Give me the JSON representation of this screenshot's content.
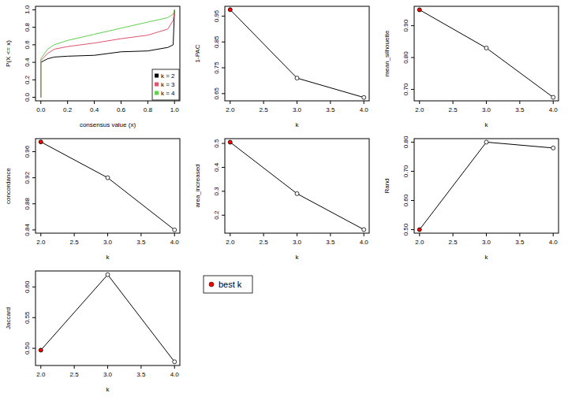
{
  "chart_data": [
    {
      "type": "line",
      "x_label": "consensus value (x)",
      "y_label": "P(X <= x)",
      "x": [
        0,
        0,
        0.05,
        0.1,
        0.2,
        0.4,
        0.6,
        0.8,
        0.95,
        0.99,
        1
      ],
      "xlim": [
        -0.04,
        1.04
      ],
      "ylim": [
        -0.04,
        1.04
      ],
      "xticks": [
        {
          "value": 0,
          "label": "0.0"
        },
        {
          "value": 0.2,
          "label": "0.2"
        },
        {
          "value": 0.4,
          "label": "0.4"
        },
        {
          "value": 0.6,
          "label": "0.6"
        },
        {
          "value": 0.8,
          "label": "0.8"
        },
        {
          "value": 1,
          "label": "1.0"
        }
      ],
      "yticks": [
        {
          "value": 0,
          "label": "0.0"
        },
        {
          "value": 0.2,
          "label": "0.2"
        },
        {
          "value": 0.4,
          "label": "0.4"
        },
        {
          "value": 0.6,
          "label": "0.6"
        },
        {
          "value": 0.8,
          "label": "0.8"
        },
        {
          "value": 1,
          "label": "1.0"
        }
      ],
      "legend": "bottomright",
      "series": [
        {
          "name": "k = 2",
          "color": "#000000",
          "marker": "none",
          "values": [
            0,
            0.4,
            0.44,
            0.46,
            0.47,
            0.48,
            0.52,
            0.53,
            0.57,
            0.6,
            1
          ]
        },
        {
          "name": "k = 3",
          "color": "#DF536B",
          "marker": "none",
          "values": [
            0,
            0.42,
            0.5,
            0.55,
            0.58,
            0.62,
            0.67,
            0.71,
            0.78,
            0.88,
            1
          ]
        },
        {
          "name": "k = 4",
          "color": "#61D04F",
          "marker": "none",
          "values": [
            0,
            0.44,
            0.55,
            0.6,
            0.65,
            0.72,
            0.79,
            0.86,
            0.91,
            0.95,
            1
          ]
        }
      ]
    },
    {
      "type": "line",
      "x_label": "k",
      "y_label": "1-PAC",
      "x": [
        2,
        3,
        4
      ],
      "xlim": [
        1.92,
        4.08
      ],
      "ylim": [
        0.622,
        0.988
      ],
      "xticks": [
        {
          "value": 2,
          "label": "2.0"
        },
        {
          "value": 2.5,
          "label": "2.5"
        },
        {
          "value": 3,
          "label": "3.0"
        },
        {
          "value": 3.5,
          "label": "3.5"
        },
        {
          "value": 4,
          "label": "4.0"
        }
      ],
      "yticks": [
        0.65,
        0.75,
        0.85,
        0.95
      ],
      "series": [
        {
          "color": "#000000",
          "marker": "circle",
          "colors": [
            "red",
            "white",
            "white"
          ],
          "values": [
            0.975,
            0.71,
            0.635
          ]
        }
      ]
    },
    {
      "type": "line",
      "x_label": "k",
      "y_label": "mean_silhouette",
      "x": [
        2,
        3,
        4
      ],
      "xlim": [
        1.92,
        4.08
      ],
      "ylim": [
        0.664,
        0.961
      ],
      "xticks": [
        {
          "value": 2,
          "label": "2.0"
        },
        {
          "value": 2.5,
          "label": "2.5"
        },
        {
          "value": 3,
          "label": "3.0"
        },
        {
          "value": 3.5,
          "label": "3.5"
        },
        {
          "value": 4,
          "label": "4.0"
        }
      ],
      "yticks": [
        {
          "value": 0.7,
          "label": "0.70"
        },
        {
          "value": 0.8,
          "label": "0.80"
        },
        {
          "value": 0.9,
          "label": "0.90"
        }
      ],
      "series": [
        {
          "color": "#000000",
          "marker": "circle",
          "colors": [
            "red",
            "white",
            "white"
          ],
          "values": [
            0.95,
            0.83,
            0.675
          ]
        }
      ]
    },
    {
      "type": "line",
      "x_label": "k",
      "y_label": "concordance",
      "x": [
        2,
        3,
        4
      ],
      "xlim": [
        1.92,
        4.08
      ],
      "ylim": [
        0.835,
        0.98
      ],
      "xticks": [
        {
          "value": 2,
          "label": "2.0"
        },
        {
          "value": 2.5,
          "label": "2.5"
        },
        {
          "value": 3,
          "label": "3.0"
        },
        {
          "value": 3.5,
          "label": "3.5"
        },
        {
          "value": 4,
          "label": "4.0"
        }
      ],
      "yticks": [
        0.84,
        0.88,
        0.92,
        0.96
      ],
      "series": [
        {
          "color": "#000000",
          "marker": "circle",
          "colors": [
            "red",
            "white",
            "white"
          ],
          "values": [
            0.975,
            0.92,
            0.84
          ]
        }
      ]
    },
    {
      "type": "line",
      "x_label": "k",
      "y_label": "area_increased",
      "x": [
        2,
        3,
        4
      ],
      "xlim": [
        1.92,
        4.08
      ],
      "ylim": [
        0.125,
        0.52
      ],
      "xticks": [
        {
          "value": 2,
          "label": "2.0"
        },
        {
          "value": 2.5,
          "label": "2.5"
        },
        {
          "value": 3,
          "label": "3.0"
        },
        {
          "value": 3.5,
          "label": "3.5"
        },
        {
          "value": 4,
          "label": "4.0"
        }
      ],
      "yticks": [
        0.2,
        0.3,
        0.4,
        0.5
      ],
      "series": [
        {
          "color": "#000000",
          "marker": "circle",
          "colors": [
            "red",
            "white",
            "white"
          ],
          "values": [
            0.505,
            0.29,
            0.14
          ]
        }
      ]
    },
    {
      "type": "line",
      "x_label": "k",
      "y_label": "Rand",
      "x": [
        2,
        3,
        4
      ],
      "xlim": [
        1.92,
        4.08
      ],
      "ylim": [
        0.488,
        0.812
      ],
      "xticks": [
        {
          "value": 2,
          "label": "2.0"
        },
        {
          "value": 2.5,
          "label": "2.5"
        },
        {
          "value": 3,
          "label": "3.0"
        },
        {
          "value": 3.5,
          "label": "3.5"
        },
        {
          "value": 4,
          "label": "4.0"
        }
      ],
      "yticks": [
        {
          "value": 0.5,
          "label": "0.50"
        },
        {
          "value": 0.6,
          "label": "0.60"
        },
        {
          "value": 0.7,
          "label": "0.70"
        },
        {
          "value": 0.8,
          "label": "0.80"
        }
      ],
      "series": [
        {
          "color": "#000000",
          "marker": "circle",
          "colors": [
            "red",
            "white",
            "white"
          ],
          "values": [
            0.5,
            0.8,
            0.78
          ]
        }
      ]
    },
    {
      "type": "line",
      "x_label": "k",
      "y_label": "Jaccard",
      "x": [
        2,
        3,
        4
      ],
      "xlim": [
        1.92,
        4.08
      ],
      "ylim": [
        0.472,
        0.626
      ],
      "xticks": [
        {
          "value": 2,
          "label": "2.0"
        },
        {
          "value": 2.5,
          "label": "2.5"
        },
        {
          "value": 3,
          "label": "3.0"
        },
        {
          "value": 3.5,
          "label": "3.5"
        },
        {
          "value": 4,
          "label": "4.0"
        }
      ],
      "yticks": [
        {
          "value": 0.5,
          "label": "0.50"
        },
        {
          "value": 0.55,
          "label": "0.55"
        },
        {
          "value": 0.6,
          "label": "0.60"
        }
      ],
      "series": [
        {
          "color": "#000000",
          "marker": "circle",
          "colors": [
            "red",
            "white",
            "white"
          ],
          "values": [
            0.497,
            0.62,
            0.478
          ]
        }
      ]
    }
  ],
  "best_k_legend": {
    "text": "best k",
    "color": "red"
  }
}
